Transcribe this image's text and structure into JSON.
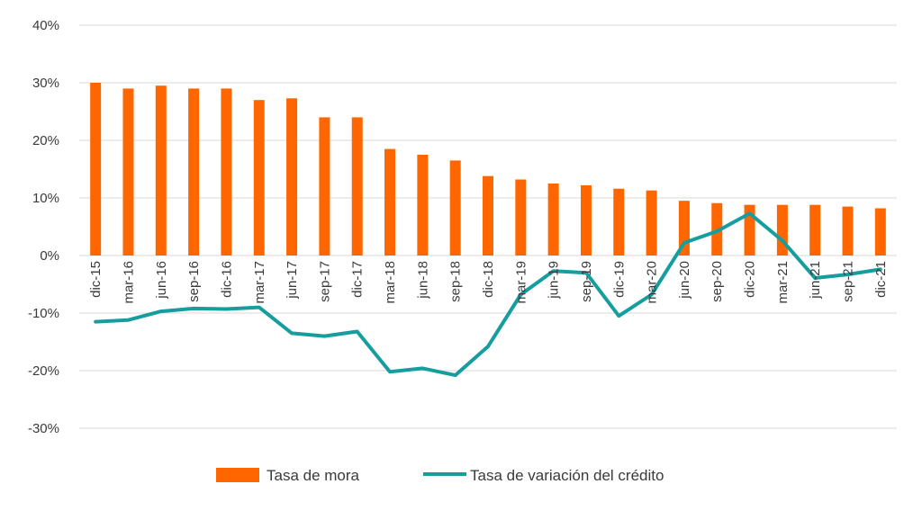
{
  "chart_data": {
    "type": "bar",
    "categories": [
      "dic-15",
      "mar-16",
      "jun-16",
      "sep-16",
      "dic-16",
      "mar-17",
      "jun-17",
      "sep-17",
      "dic-17",
      "mar-18",
      "jun-18",
      "sep-18",
      "dic-18",
      "mar-19",
      "jun-19",
      "sep-19",
      "dic-19",
      "mar-20",
      "jun-20",
      "sep-20",
      "dic-20",
      "mar-21",
      "jun-21",
      "sep-21",
      "dic-21"
    ],
    "series": [
      {
        "name": "Tasa de mora",
        "type": "bar",
        "color": "#ff6600",
        "values": [
          30.0,
          29.0,
          29.5,
          29.0,
          29.0,
          27.0,
          27.3,
          24.0,
          24.0,
          18.5,
          17.5,
          16.5,
          13.8,
          13.2,
          12.5,
          12.2,
          11.6,
          11.3,
          9.5,
          9.1,
          8.8,
          8.8,
          8.8,
          8.5,
          8.2
        ]
      },
      {
        "name": "Tasa de variación del crédito",
        "type": "line",
        "color": "#169e9e",
        "values": [
          -11.5,
          -11.2,
          -9.7,
          -9.2,
          -9.3,
          -9.0,
          -13.5,
          -14.0,
          -13.2,
          -20.2,
          -19.6,
          -20.8,
          -15.8,
          -6.8,
          -2.7,
          -3.0,
          -10.5,
          -6.8,
          2.2,
          4.2,
          7.3,
          2.6,
          -3.9,
          -3.3,
          -2.4
        ]
      }
    ],
    "yticks": [
      "40%",
      "30%",
      "20%",
      "10%",
      "0%",
      "-10%",
      "-20%",
      "-30%"
    ],
    "ylim": [
      -30,
      40
    ],
    "grid": true,
    "legend": "bottom"
  }
}
